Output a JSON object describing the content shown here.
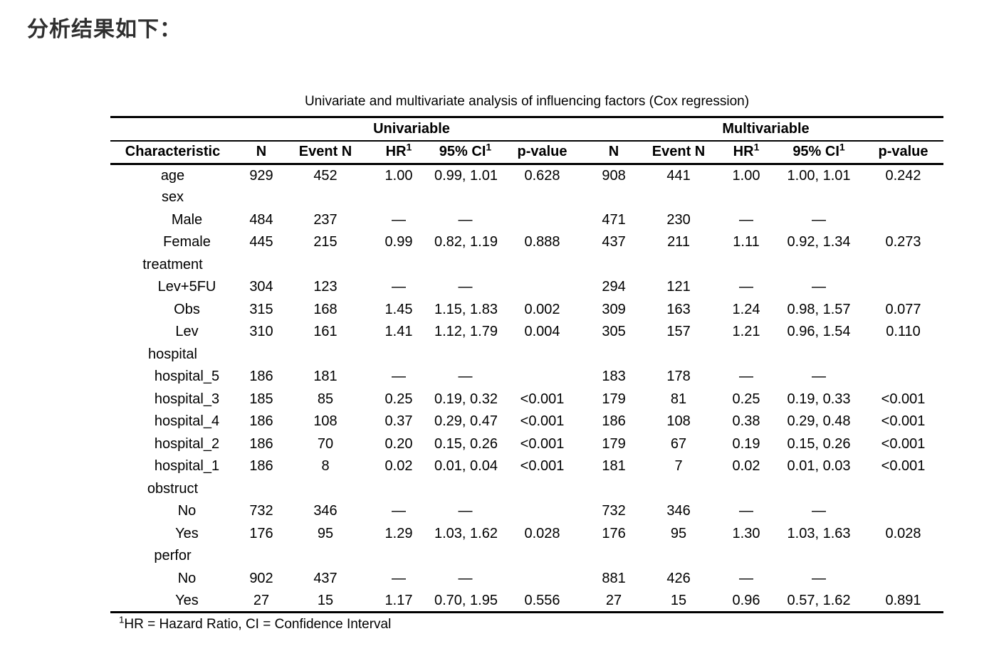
{
  "page": {
    "heading": "分析结果如下："
  },
  "table": {
    "title": "Univariate and multivariate analysis of influencing factors (Cox regression)",
    "span_headers": {
      "univariable": "Univariable",
      "multivariable": "Multivariable"
    },
    "columns": {
      "characteristic": "Characteristic",
      "n": "N",
      "event_n": "Event N",
      "hr": "HR",
      "ci": "95% CI",
      "p_value": "p-value",
      "sup": "1"
    },
    "rows": [
      {
        "label": "age",
        "indent": false,
        "cells": [
          "929",
          "452",
          "1.00",
          "0.99, 1.01",
          "0.628",
          "908",
          "441",
          "1.00",
          "1.00, 1.01",
          "0.242"
        ]
      },
      {
        "label": "sex",
        "indent": false,
        "cells": [
          "",
          "",
          "",
          "",
          "",
          "",
          "",
          "",
          "",
          ""
        ]
      },
      {
        "label": "Male",
        "indent": true,
        "cells": [
          "484",
          "237",
          "—",
          "—",
          "",
          "471",
          "230",
          "—",
          "—",
          ""
        ]
      },
      {
        "label": "Female",
        "indent": true,
        "cells": [
          "445",
          "215",
          "0.99",
          "0.82, 1.19",
          "0.888",
          "437",
          "211",
          "1.11",
          "0.92, 1.34",
          "0.273"
        ]
      },
      {
        "label": "treatment",
        "indent": false,
        "cells": [
          "",
          "",
          "",
          "",
          "",
          "",
          "",
          "",
          "",
          ""
        ]
      },
      {
        "label": "Lev+5FU",
        "indent": true,
        "cells": [
          "304",
          "123",
          "—",
          "—",
          "",
          "294",
          "121",
          "—",
          "—",
          ""
        ]
      },
      {
        "label": "Obs",
        "indent": true,
        "cells": [
          "315",
          "168",
          "1.45",
          "1.15, 1.83",
          "0.002",
          "309",
          "163",
          "1.24",
          "0.98, 1.57",
          "0.077"
        ]
      },
      {
        "label": "Lev",
        "indent": true,
        "cells": [
          "310",
          "161",
          "1.41",
          "1.12, 1.79",
          "0.004",
          "305",
          "157",
          "1.21",
          "0.96, 1.54",
          "0.110"
        ]
      },
      {
        "label": "hospital",
        "indent": false,
        "cells": [
          "",
          "",
          "",
          "",
          "",
          "",
          "",
          "",
          "",
          ""
        ]
      },
      {
        "label": "hospital_5",
        "indent": true,
        "cells": [
          "186",
          "181",
          "—",
          "—",
          "",
          "183",
          "178",
          "—",
          "—",
          ""
        ]
      },
      {
        "label": "hospital_3",
        "indent": true,
        "cells": [
          "185",
          "85",
          "0.25",
          "0.19, 0.32",
          "<0.001",
          "179",
          "81",
          "0.25",
          "0.19, 0.33",
          "<0.001"
        ]
      },
      {
        "label": "hospital_4",
        "indent": true,
        "cells": [
          "186",
          "108",
          "0.37",
          "0.29, 0.47",
          "<0.001",
          "186",
          "108",
          "0.38",
          "0.29, 0.48",
          "<0.001"
        ]
      },
      {
        "label": "hospital_2",
        "indent": true,
        "cells": [
          "186",
          "70",
          "0.20",
          "0.15, 0.26",
          "<0.001",
          "179",
          "67",
          "0.19",
          "0.15, 0.26",
          "<0.001"
        ]
      },
      {
        "label": "hospital_1",
        "indent": true,
        "cells": [
          "186",
          "8",
          "0.02",
          "0.01, 0.04",
          "<0.001",
          "181",
          "7",
          "0.02",
          "0.01, 0.03",
          "<0.001"
        ]
      },
      {
        "label": "obstruct",
        "indent": false,
        "cells": [
          "",
          "",
          "",
          "",
          "",
          "",
          "",
          "",
          "",
          ""
        ]
      },
      {
        "label": "No",
        "indent": true,
        "cells": [
          "732",
          "346",
          "—",
          "—",
          "",
          "732",
          "346",
          "—",
          "—",
          ""
        ]
      },
      {
        "label": "Yes",
        "indent": true,
        "cells": [
          "176",
          "95",
          "1.29",
          "1.03, 1.62",
          "0.028",
          "176",
          "95",
          "1.30",
          "1.03, 1.63",
          "0.028"
        ]
      },
      {
        "label": "perfor",
        "indent": false,
        "cells": [
          "",
          "",
          "",
          "",
          "",
          "",
          "",
          "",
          "",
          ""
        ]
      },
      {
        "label": "No",
        "indent": true,
        "cells": [
          "902",
          "437",
          "—",
          "—",
          "",
          "881",
          "426",
          "—",
          "—",
          ""
        ]
      },
      {
        "label": "Yes",
        "indent": true,
        "cells": [
          "27",
          "15",
          "1.17",
          "0.70, 1.95",
          "0.556",
          "27",
          "15",
          "0.96",
          "0.57, 1.62",
          "0.891"
        ]
      }
    ],
    "footnote": {
      "sup": "1",
      "text": "HR = Hazard Ratio, CI = Confidence Interval"
    }
  }
}
